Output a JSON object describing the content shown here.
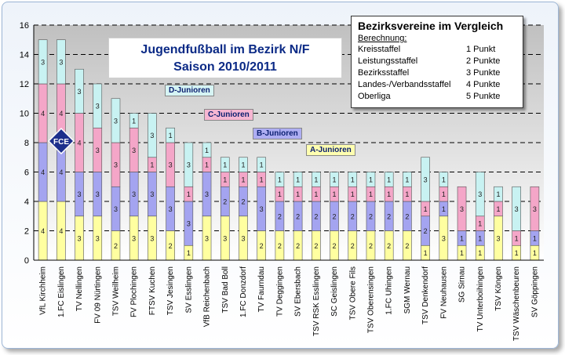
{
  "title": {
    "line1": "Jugendfußball im Bezirk N/F",
    "line2": "Saison 2010/2011"
  },
  "legend_box": {
    "title": "Bezirksvereine im Vergleich",
    "subtitle": "Berechnung:",
    "rows": [
      {
        "name": "Kreisstaffel",
        "points": "1 Punkt"
      },
      {
        "name": "Leistungsstaffel",
        "points": "2 Punkte"
      },
      {
        "name": "Bezirksstaffel",
        "points": "3 Punkte"
      },
      {
        "name": "Landes-/Verbandsstaffel",
        "points": "4 Punkte"
      },
      {
        "name": "Oberliga",
        "points": "5 Punkte"
      }
    ]
  },
  "logo_text": "FCE",
  "colors": {
    "A": "#ffffa0",
    "B": "#a4a4f0",
    "C": "#f4a6c8",
    "D": "#c8f2f2",
    "grid": "#000000",
    "plot_bg_top": "#c8c8c8",
    "plot_bg_bottom": "#ffffff"
  },
  "chart_data": {
    "type": "bar",
    "stacked": true,
    "categories": [
      "VfL Kirchheim",
      "1.FC Eislingen",
      "TV Nellingen",
      "FV 09 Nürtingen",
      "TSV Weilheim",
      "FV Plochingen",
      "FTSV Kuchen",
      "TSV Jesingen",
      "SV Esslingen",
      "VfB Reichenbach",
      "TSV Bad Boll",
      "1.FC Donzdorf",
      "TV Faurndau",
      "TV Deggingen",
      "SV Ebersbach",
      "TSV RSK Esslingen",
      "SC Geislingen",
      "TSV Obere Fils",
      "TSV Oberensingen",
      "1.FC Uhingen",
      "SGM Wernau",
      "TSV Denkendorf",
      "FV Neuhausen",
      "SG Sirnau",
      "TV Unterboihingen",
      "TSV Köngen",
      "TSV Wäschenbeuren",
      "SV Göppingen"
    ],
    "series": [
      {
        "name": "A-Junioren",
        "values": [
          4,
          4,
          3,
          3,
          2,
          3,
          3,
          2,
          1,
          3,
          3,
          3,
          2,
          2,
          2,
          2,
          2,
          2,
          2,
          2,
          2,
          1,
          3,
          1,
          1,
          3,
          1,
          1
        ]
      },
      {
        "name": "B-Junioren",
        "values": [
          4,
          4,
          3,
          3,
          3,
          3,
          3,
          3,
          3,
          3,
          2,
          2,
          3,
          2,
          2,
          2,
          2,
          2,
          2,
          2,
          2,
          2,
          1,
          1,
          1,
          0,
          0,
          1
        ]
      },
      {
        "name": "C-Junioren",
        "values": [
          4,
          4,
          4,
          3,
          3,
          3,
          1,
          3,
          1,
          1,
          1,
          1,
          1,
          1,
          1,
          1,
          1,
          1,
          1,
          1,
          1,
          1,
          1,
          3,
          1,
          1,
          1,
          3
        ]
      },
      {
        "name": "D-Junioren",
        "values": [
          3,
          3,
          3,
          3,
          3,
          1,
          3,
          1,
          3,
          1,
          1,
          1,
          1,
          1,
          1,
          1,
          1,
          1,
          1,
          1,
          1,
          3,
          1,
          0,
          3,
          1,
          3,
          0
        ]
      }
    ],
    "ylim": [
      0,
      16
    ],
    "yticks": [
      0,
      2,
      4,
      6,
      8,
      10,
      12,
      14,
      16
    ],
    "grid": true
  }
}
